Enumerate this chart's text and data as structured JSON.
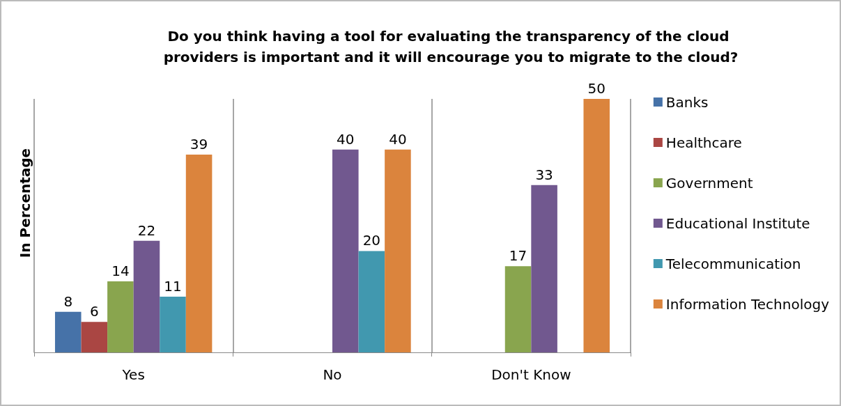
{
  "chart_data": {
    "type": "bar",
    "title": "Do you think having a tool for evaluating the transparency of the cloud providers is important and it will encourage you to migrate to the cloud?",
    "ylabel": "In Percentage",
    "grid": "x",
    "legend": "right",
    "data_labels": true,
    "categories": [
      "Yes",
      "No",
      "Don't Know"
    ],
    "series": [
      {
        "name": "Banks",
        "color": "#4672a8",
        "values": [
          8,
          null,
          null
        ]
      },
      {
        "name": "Healthcare",
        "color": "#aa4643",
        "values": [
          6,
          null,
          null
        ]
      },
      {
        "name": "Government",
        "color": "#89a54e",
        "values": [
          14,
          null,
          17
        ]
      },
      {
        "name": "Educational Institute",
        "color": "#71588f",
        "values": [
          22,
          40,
          33
        ]
      },
      {
        "name": "Telecommunication",
        "color": "#4198af",
        "values": [
          11,
          20,
          null
        ]
      },
      {
        "name": "Information Technology",
        "color": "#db843d",
        "values": [
          39,
          40,
          50
        ]
      }
    ]
  }
}
